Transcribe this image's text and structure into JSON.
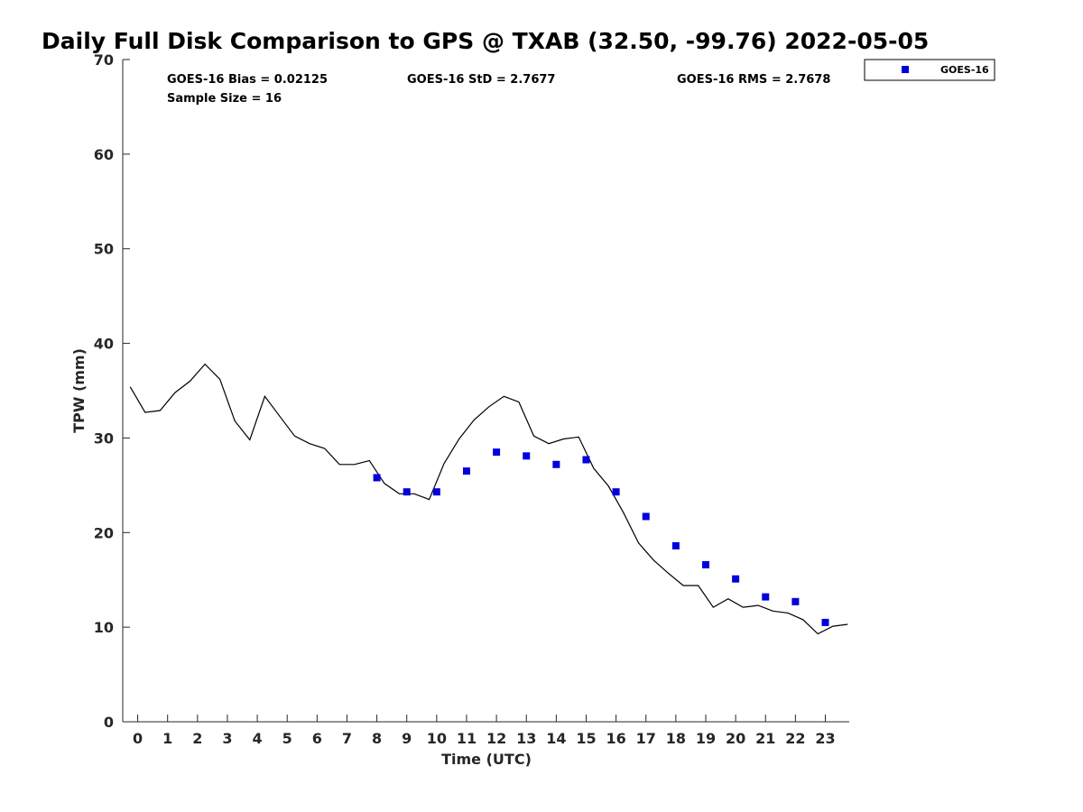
{
  "chart_data": {
    "type": "scatter",
    "title": "Daily Full Disk Comparison to GPS @ TXAB (32.50, -99.76) 2022-05-05",
    "xlabel": "Time (UTC)",
    "ylabel": "TPW (mm)",
    "xlim": [
      -0.5,
      23.8
    ],
    "ylim": [
      0,
      70
    ],
    "xticks": [
      0,
      1,
      2,
      3,
      4,
      5,
      6,
      7,
      8,
      9,
      10,
      11,
      12,
      13,
      14,
      15,
      16,
      17,
      18,
      19,
      20,
      21,
      22,
      23
    ],
    "yticks": [
      0,
      10,
      20,
      30,
      40,
      50,
      60,
      70
    ],
    "grid": false,
    "legend_position": "top-right",
    "stats": {
      "bias": "GOES-16 Bias = 0.02125",
      "std": "GOES-16 StD = 2.7677",
      "rms": "GOES-16 RMS = 2.7678",
      "sample": "Sample Size = 16"
    },
    "series": [
      {
        "name": "GOES-16",
        "kind": "marker",
        "color": "#0000dd",
        "x": [
          8,
          9,
          10,
          11,
          12,
          13,
          14,
          15,
          16,
          17,
          18,
          19,
          20,
          21,
          22,
          23
        ],
        "y": [
          25.8,
          24.3,
          24.3,
          26.5,
          28.5,
          28.1,
          27.2,
          27.7,
          24.3,
          21.7,
          18.6,
          16.6,
          15.1,
          13.2,
          12.7,
          10.5
        ]
      },
      {
        "kind": "line",
        "color": "#000000",
        "x": [
          -0.25,
          0.25,
          0.75,
          1.25,
          1.75,
          2.25,
          2.75,
          3.25,
          3.75,
          4.25,
          4.75,
          5.25,
          5.75,
          6.25,
          6.75,
          7.25,
          7.75,
          8.25,
          8.75,
          9.25,
          9.75,
          10.25,
          10.75,
          11.25,
          11.75,
          12.25,
          12.75,
          13.25,
          13.75,
          14.25,
          14.75,
          15.25,
          15.75,
          16.25,
          16.75,
          17.25,
          17.75,
          18.25,
          18.75,
          19.25,
          19.75,
          20.25,
          20.75,
          21.25,
          21.75,
          22.25,
          22.75,
          23.25,
          23.75
        ],
        "y": [
          35.4,
          32.7,
          32.9,
          34.8,
          36.0,
          37.8,
          36.2,
          31.8,
          29.8,
          34.4,
          32.3,
          30.2,
          29.4,
          28.9,
          27.2,
          27.2,
          27.6,
          25.2,
          24.1,
          24.1,
          23.5,
          27.3,
          29.9,
          31.9,
          33.3,
          34.4,
          33.8,
          30.2,
          29.4,
          29.9,
          30.1,
          26.8,
          24.9,
          22.1,
          18.9,
          17.1,
          15.7,
          14.4,
          14.4,
          12.1,
          13.0,
          12.1,
          12.3,
          11.7,
          11.5,
          10.8,
          9.3,
          10.1,
          10.3
        ]
      }
    ]
  }
}
